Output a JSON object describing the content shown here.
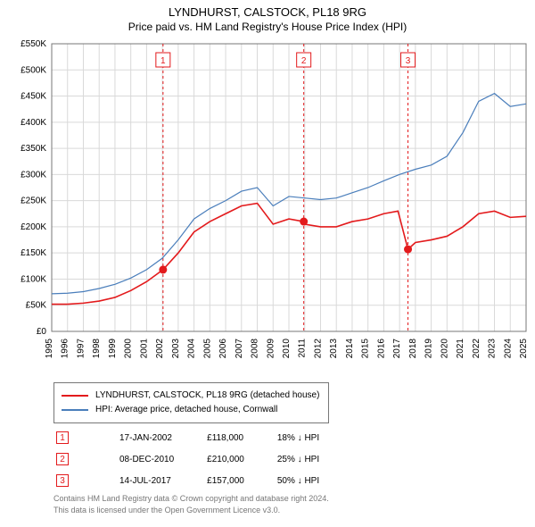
{
  "title_line1": "LYNDHURST, CALSTOCK, PL18 9RG",
  "title_line2": "Price paid vs. HM Land Registry's House Price Index (HPI)",
  "chart": {
    "type": "line",
    "background_color": "#ffffff",
    "grid_color": "#d9d9d9",
    "plot_border_color": "#777777",
    "x_domain": [
      1995,
      2025
    ],
    "y_domain": [
      0,
      550000
    ],
    "y_ticks": [
      0,
      50000,
      100000,
      150000,
      200000,
      250000,
      300000,
      350000,
      400000,
      450000,
      500000,
      550000
    ],
    "y_tick_labels": [
      "£0",
      "£50K",
      "£100K",
      "£150K",
      "£200K",
      "£250K",
      "£300K",
      "£350K",
      "£400K",
      "£450K",
      "£500K",
      "£550K"
    ],
    "x_ticks": [
      1995,
      1996,
      1997,
      1998,
      1999,
      2000,
      2001,
      2002,
      2003,
      2004,
      2005,
      2006,
      2007,
      2008,
      2009,
      2010,
      2011,
      2012,
      2013,
      2014,
      2015,
      2016,
      2017,
      2018,
      2019,
      2020,
      2021,
      2022,
      2023,
      2024,
      2025
    ],
    "axis_fontsize": 10,
    "series": {
      "property": {
        "label": "LYNDHURST, CALSTOCK, PL18 9RG (detached house)",
        "color": "#e31a1c",
        "line_width": 1.6,
        "data": [
          [
            1995,
            52000
          ],
          [
            1996,
            52000
          ],
          [
            1997,
            54000
          ],
          [
            1998,
            58000
          ],
          [
            1999,
            65000
          ],
          [
            2000,
            78000
          ],
          [
            2001,
            95000
          ],
          [
            2002.04,
            118000
          ],
          [
            2003,
            150000
          ],
          [
            2004,
            190000
          ],
          [
            2005,
            210000
          ],
          [
            2006,
            225000
          ],
          [
            2007,
            240000
          ],
          [
            2008,
            245000
          ],
          [
            2009,
            205000
          ],
          [
            2010,
            215000
          ],
          [
            2010.94,
            210000
          ],
          [
            2011,
            205000
          ],
          [
            2012,
            200000
          ],
          [
            2013,
            200000
          ],
          [
            2014,
            210000
          ],
          [
            2015,
            215000
          ],
          [
            2016,
            225000
          ],
          [
            2016.9,
            230000
          ],
          [
            2017.53,
            157000
          ],
          [
            2018,
            170000
          ],
          [
            2019,
            175000
          ],
          [
            2020,
            182000
          ],
          [
            2021,
            200000
          ],
          [
            2022,
            225000
          ],
          [
            2023,
            230000
          ],
          [
            2024,
            218000
          ],
          [
            2025,
            220000
          ]
        ]
      },
      "hpi": {
        "label": "HPI: Average price, detached house, Cornwall",
        "color": "#4a7ebb",
        "line_width": 1.2,
        "data": [
          [
            1995,
            72000
          ],
          [
            1996,
            73000
          ],
          [
            1997,
            76000
          ],
          [
            1998,
            82000
          ],
          [
            1999,
            90000
          ],
          [
            2000,
            102000
          ],
          [
            2001,
            118000
          ],
          [
            2002,
            140000
          ],
          [
            2003,
            175000
          ],
          [
            2004,
            215000
          ],
          [
            2005,
            235000
          ],
          [
            2006,
            250000
          ],
          [
            2007,
            268000
          ],
          [
            2008,
            275000
          ],
          [
            2009,
            240000
          ],
          [
            2010,
            258000
          ],
          [
            2011,
            255000
          ],
          [
            2012,
            252000
          ],
          [
            2013,
            255000
          ],
          [
            2014,
            265000
          ],
          [
            2015,
            275000
          ],
          [
            2016,
            288000
          ],
          [
            2017,
            300000
          ],
          [
            2018,
            310000
          ],
          [
            2019,
            318000
          ],
          [
            2020,
            335000
          ],
          [
            2021,
            380000
          ],
          [
            2022,
            440000
          ],
          [
            2023,
            455000
          ],
          [
            2024,
            430000
          ],
          [
            2025,
            435000
          ]
        ]
      }
    },
    "sale_markers": [
      {
        "n": "1",
        "year": 2002.04,
        "price": 118000
      },
      {
        "n": "2",
        "year": 2010.94,
        "price": 210000
      },
      {
        "n": "3",
        "year": 2017.53,
        "price": 157000
      }
    ],
    "sale_marker_line_color": "#e31a1c",
    "sale_marker_dot_color": "#e31a1c",
    "sale_marker_dash": "3,3"
  },
  "legend": {
    "series1_label": "LYNDHURST, CALSTOCK, PL18 9RG (detached house)",
    "series2_label": "HPI: Average price, detached house, Cornwall"
  },
  "sales_table": [
    {
      "n": "1",
      "date": "17-JAN-2002",
      "price": "£118,000",
      "delta": "18% ↓ HPI"
    },
    {
      "n": "2",
      "date": "08-DEC-2010",
      "price": "£210,000",
      "delta": "25% ↓ HPI"
    },
    {
      "n": "3",
      "date": "14-JUL-2017",
      "price": "£157,000",
      "delta": "50% ↓ HPI"
    }
  ],
  "footnote_line1": "Contains HM Land Registry data © Crown copyright and database right 2024.",
  "footnote_line2": "This data is licensed under the Open Government Licence v3.0."
}
